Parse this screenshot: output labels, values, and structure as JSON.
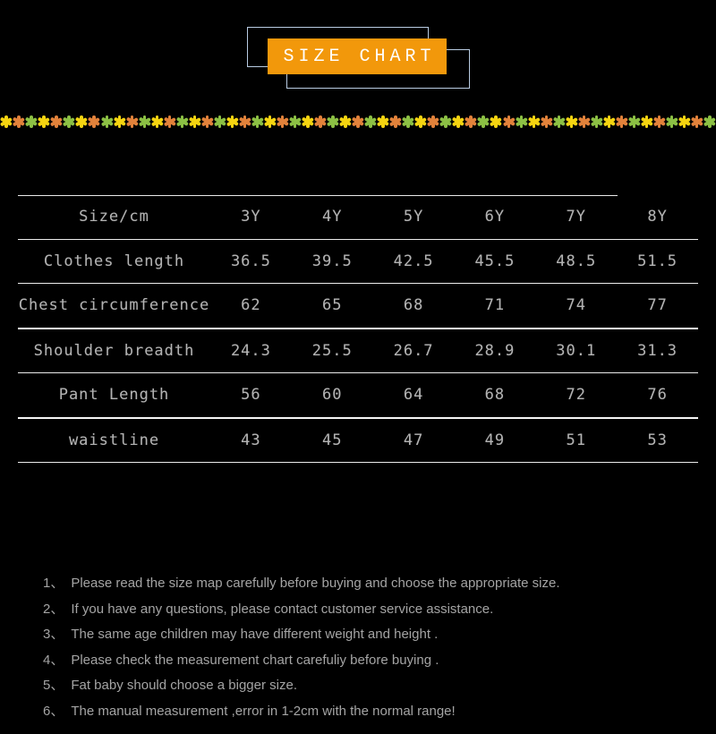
{
  "header": {
    "title": "SIZE CHART",
    "banner_color": "#f2980b",
    "outline_color": "#b9cce3"
  },
  "divider": {
    "glyph_name": "flower-asterisk-icon",
    "colors": [
      "#f5d411",
      "#e2823b",
      "#8cc044"
    ],
    "count": 57
  },
  "size_table": {
    "columns": [
      "Size/cm",
      "3Y",
      "4Y",
      "5Y",
      "6Y",
      "7Y",
      "8Y"
    ],
    "rows": [
      {
        "label": "Clothes length",
        "values": [
          "36.5",
          "39.5",
          "42.5",
          "45.5",
          "48.5",
          "51.5"
        ]
      },
      {
        "label": "Chest circumference",
        "values": [
          "62",
          "65",
          "68",
          "71",
          "74",
          "77"
        ]
      },
      {
        "label": "Shoulder breadth",
        "values": [
          "24.3",
          "25.5",
          "26.7",
          "28.9",
          "30.1",
          "31.3"
        ]
      },
      {
        "label": "Pant Length",
        "values": [
          "56",
          "60",
          "64",
          "68",
          "72",
          "76"
        ]
      },
      {
        "label": "waistline",
        "values": [
          "43",
          "45",
          "47",
          "49",
          "51",
          "53"
        ]
      }
    ]
  },
  "notes": [
    {
      "num": "1、",
      "text": "Please read the size map carefully before buying and choose the appropriate size."
    },
    {
      "num": "2、",
      "text": "If you have any questions, please contact customer service assistance."
    },
    {
      "num": "3、",
      "text": "The same age children may have different weight and height ."
    },
    {
      "num": "4、",
      "text": "Please check  the  measurement chart carefuliy before buying ."
    },
    {
      "num": "5、",
      "text": "Fat baby should choose a bigger size."
    },
    {
      "num": "6、",
      "text": "The manual measurement ,error in 1-2cm with the normal range!"
    }
  ]
}
